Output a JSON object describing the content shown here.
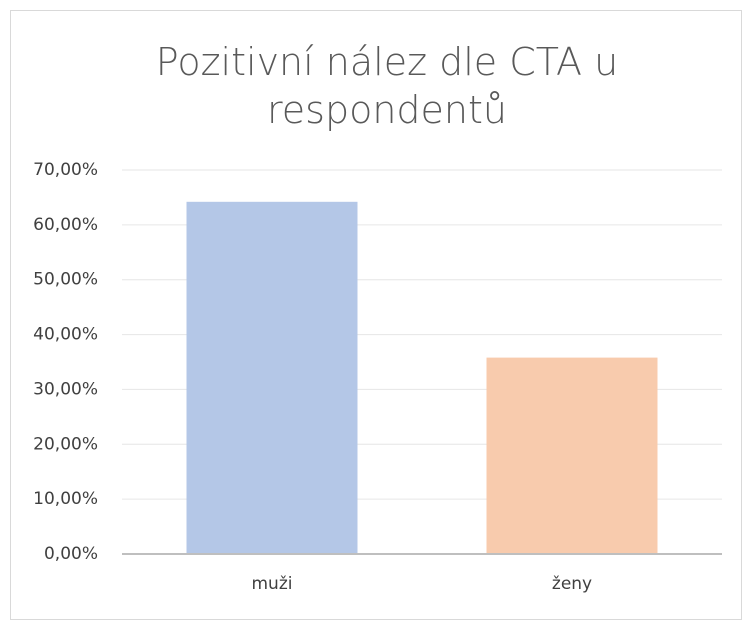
{
  "chart_data": {
    "type": "bar",
    "title": "Pozitivní nález dle CTA u respondentů",
    "categories": [
      "muži",
      "ženy"
    ],
    "values": [
      64.2,
      35.8
    ],
    "colors": [
      "#b4c7e7",
      "#f8cbad"
    ],
    "ylim": [
      0,
      70
    ],
    "yticks": [
      {
        "value": 0,
        "label": "0,00%"
      },
      {
        "value": 10,
        "label": "10,00%"
      },
      {
        "value": 20,
        "label": "20,00%"
      },
      {
        "value": 30,
        "label": "30,00%"
      },
      {
        "value": 40,
        "label": "40,00%"
      },
      {
        "value": 50,
        "label": "50,00%"
      },
      {
        "value": 60,
        "label": "60,00%"
      },
      {
        "value": 70,
        "label": "70,00%"
      }
    ],
    "grid": true
  }
}
